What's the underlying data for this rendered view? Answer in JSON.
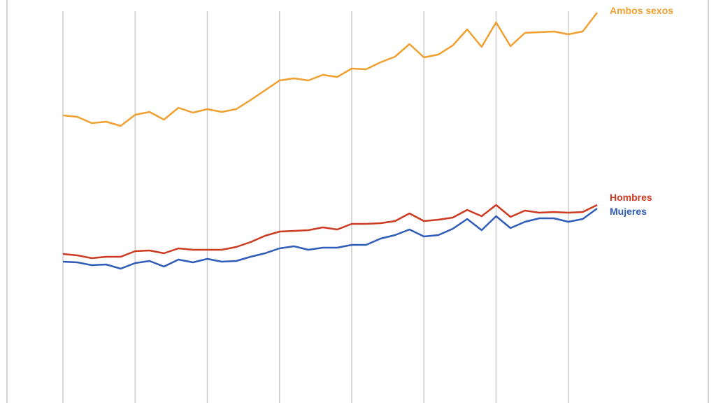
{
  "chart_data": {
    "type": "line",
    "title": "",
    "xlabel": "",
    "ylabel": "",
    "grid": {
      "vertical": true,
      "horizontal": false,
      "every_n_points": 5
    },
    "legend_position": "inline-right",
    "x": [
      1,
      2,
      3,
      4,
      5,
      6,
      7,
      8,
      9,
      10,
      11,
      12,
      13,
      14,
      15,
      16,
      17,
      18,
      19,
      20,
      21,
      22,
      23,
      24,
      25,
      26,
      27,
      28,
      29,
      30,
      31,
      32,
      33,
      34,
      35,
      36,
      37,
      38
    ],
    "ylim": [
      0,
      576
    ],
    "value_note": "Relative values read from pixel heights (no axis ticks visible)",
    "series": [
      {
        "name": "Ambos sexos",
        "color": "#f0a030",
        "values": [
          411,
          409,
          400,
          402,
          396,
          412,
          416,
          405,
          422,
          415,
          420,
          416,
          420,
          433,
          447,
          461,
          464,
          461,
          469,
          466,
          478,
          477,
          487,
          495,
          513,
          494,
          498,
          511,
          534,
          509,
          544,
          510,
          529,
          530,
          531,
          527,
          531,
          558
        ]
      },
      {
        "name": "Hombres",
        "color": "#cc3a22",
        "values": [
          213,
          211,
          207,
          209,
          209,
          217,
          218,
          214,
          221,
          219,
          219,
          219,
          223,
          230,
          239,
          245,
          246,
          247,
          251,
          248,
          256,
          256,
          257,
          260,
          271,
          260,
          262,
          265,
          276,
          267,
          283,
          266,
          275,
          272,
          273,
          272,
          273,
          283
        ]
      },
      {
        "name": "Mujeres",
        "color": "#2e5cb8",
        "values": [
          202,
          201,
          197,
          198,
          192,
          200,
          203,
          195,
          205,
          201,
          206,
          202,
          203,
          209,
          214,
          221,
          224,
          219,
          222,
          222,
          226,
          226,
          235,
          240,
          248,
          238,
          240,
          249,
          263,
          247,
          267,
          250,
          259,
          264,
          264,
          259,
          263,
          278
        ]
      }
    ]
  },
  "labels": {
    "ambos": "Ambos sexos",
    "hombres": "Hombres",
    "mujeres": "Mujeres"
  }
}
